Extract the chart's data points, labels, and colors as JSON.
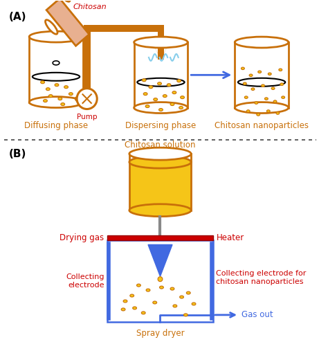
{
  "bg_color": "#ffffff",
  "label_A": "(A)",
  "label_B": "(B)",
  "chitosan_label": "Chitosan",
  "chitosan_solution_label": "Chitosan solution",
  "diffusing_label": "Diffusing phase",
  "dispersing_label": "Dispersing phase",
  "nanoparticles_label": "Chitosan nanoparticles",
  "pump_label": "Pump",
  "drying_gas_label": "Drying gas",
  "heater_label": "Heater",
  "collecting_electrode_label": "Collecting\nelectrode",
  "collecting_electrode2_label": "Collecting electrode for\nchitosan nanoparticles",
  "spray_dryer_label": "Spray dryer",
  "gas_out_label": "Gas out",
  "orange_color": "#C8700A",
  "gold_fill": "#F5C518",
  "blue_color": "#4169E1",
  "red_color": "#CC0000",
  "chitosan_tube_color": "#E8B090",
  "dotted_line_color": "#333333"
}
